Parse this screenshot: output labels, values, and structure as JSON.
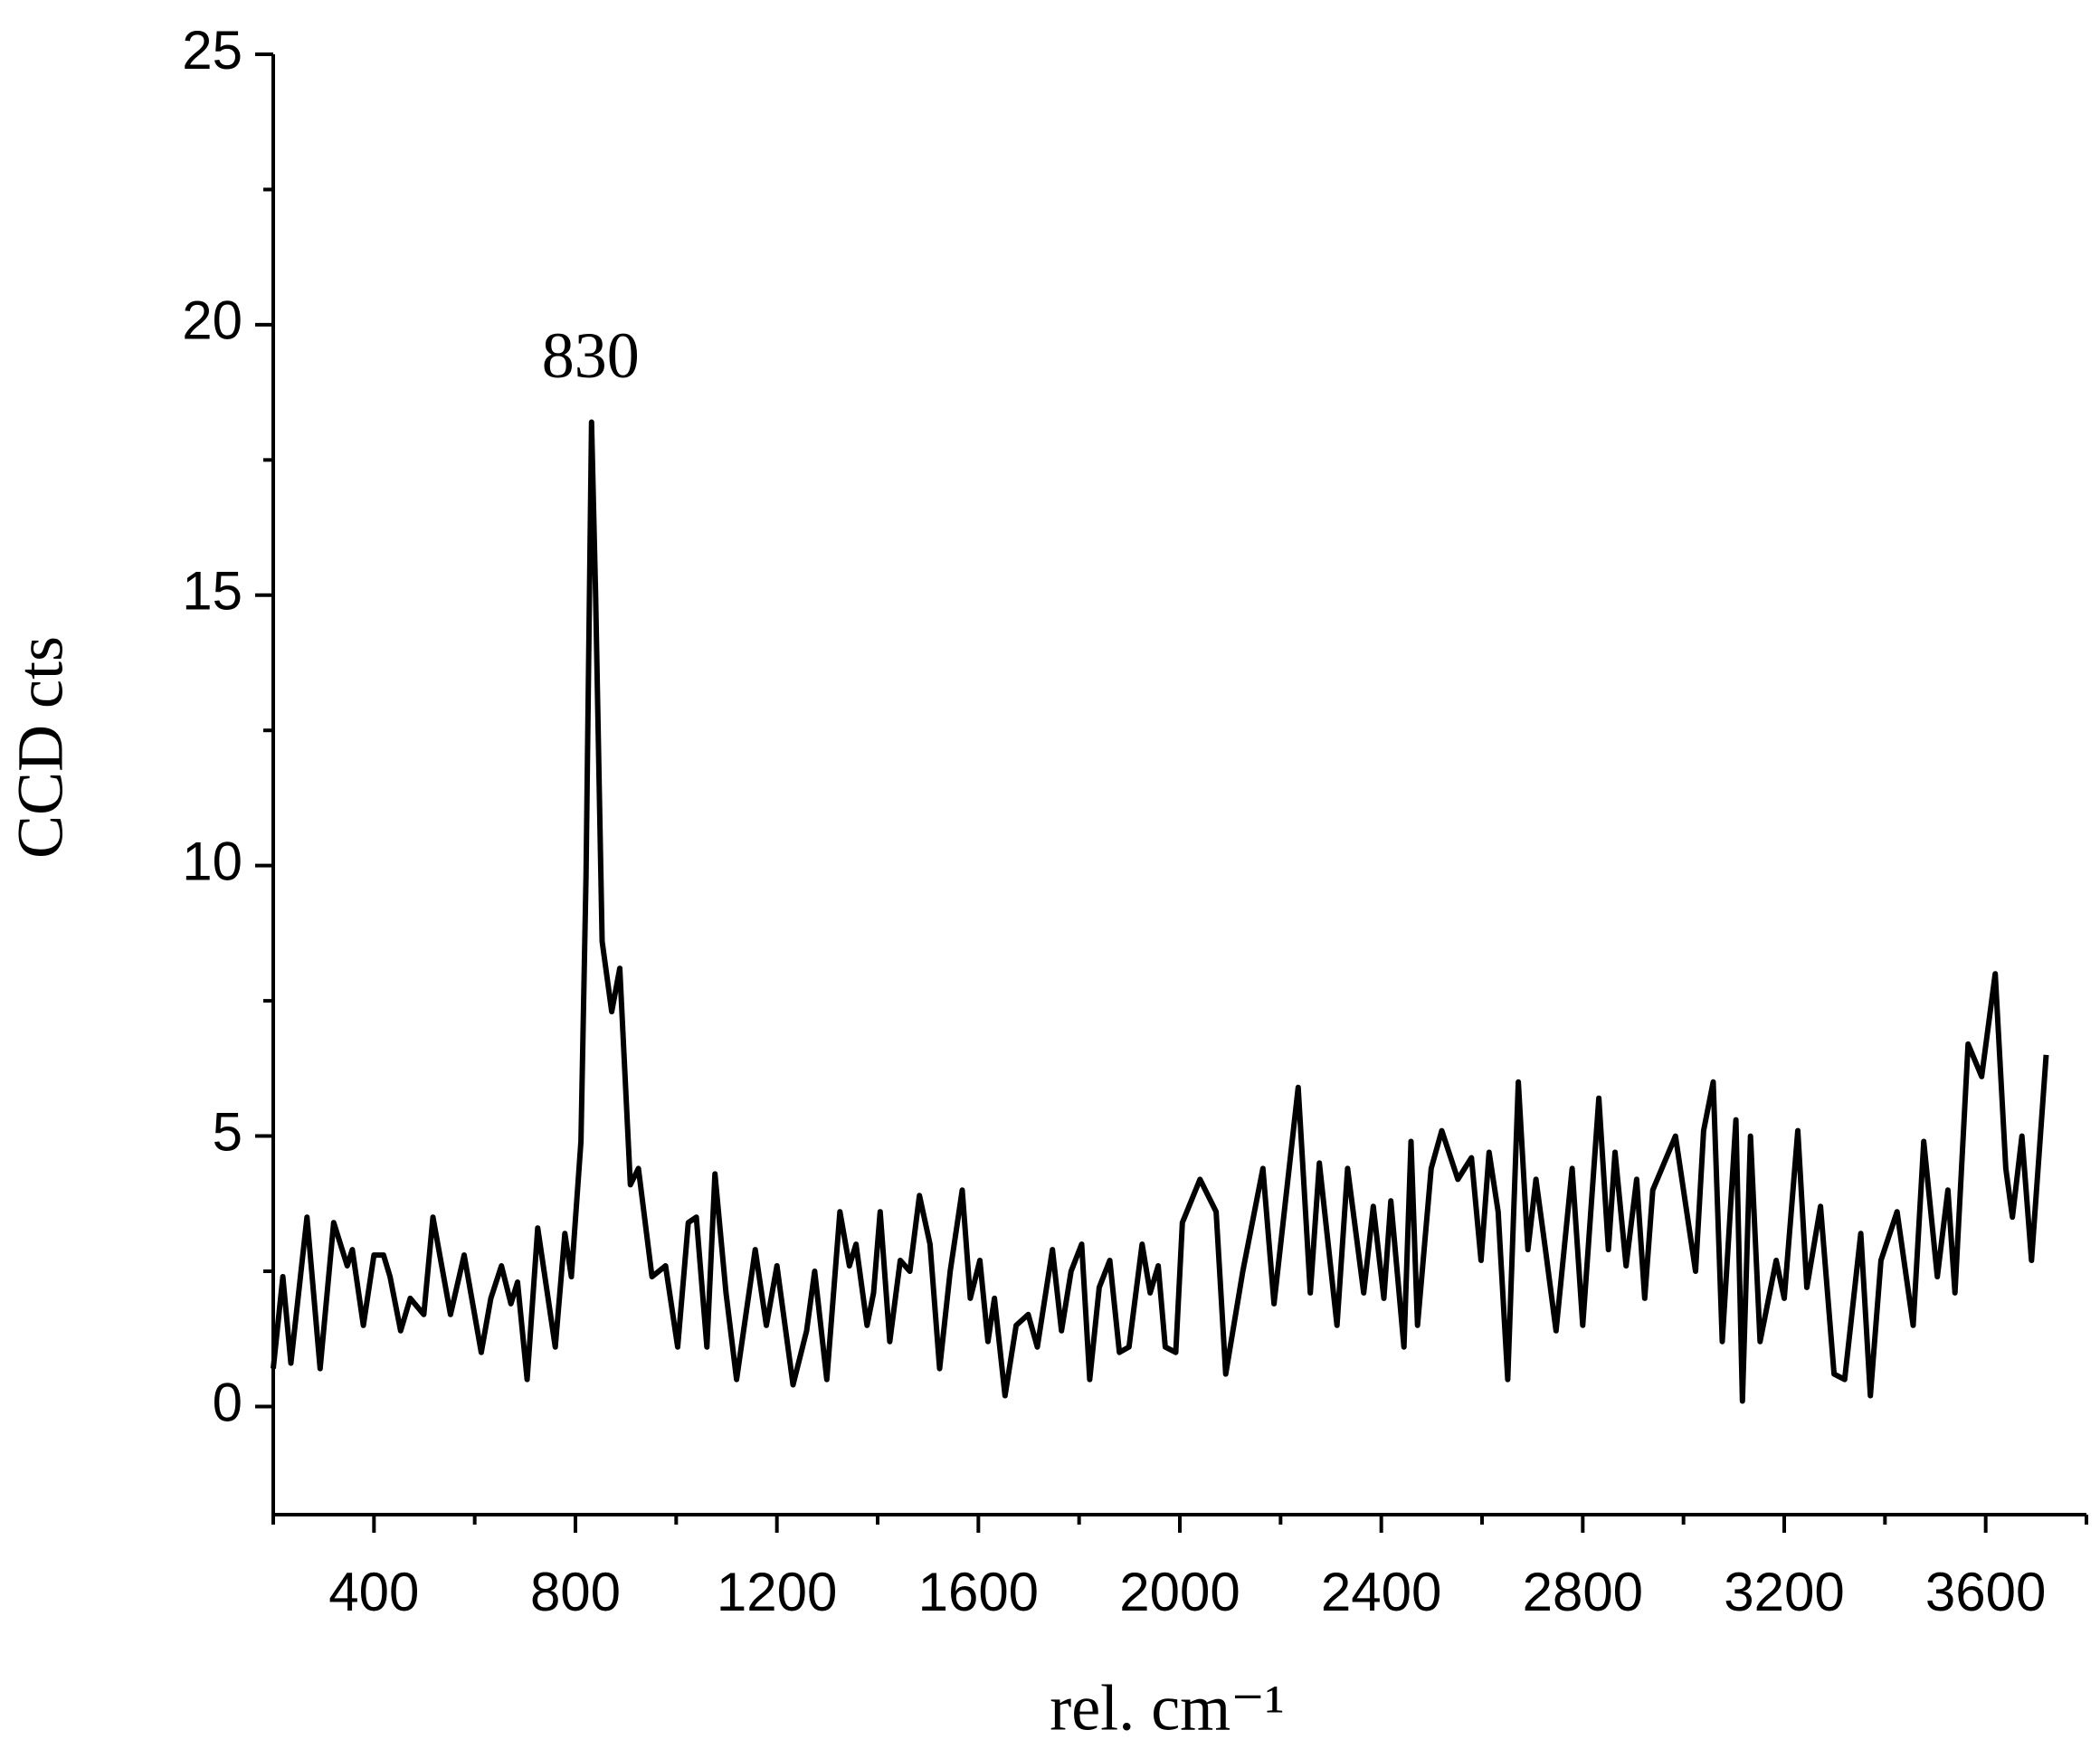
{
  "chart_data": {
    "type": "line",
    "xlabel": "rel. cm⁻¹",
    "ylabel": "CCD cts",
    "annotations": [
      {
        "text": "830",
        "x": 830,
        "y": 19.3
      }
    ],
    "xlim": [
      200,
      3800
    ],
    "ylim": [
      -2,
      25
    ],
    "xticks": [
      400,
      800,
      1200,
      1600,
      2000,
      2400,
      2800,
      3200,
      3600
    ],
    "xminorticks": [
      200,
      600,
      1000,
      1400,
      1800,
      2200,
      2600,
      3000,
      3400,
      3800
    ],
    "yticks": [
      0,
      5,
      10,
      15,
      20,
      25
    ],
    "yminorticks": [
      2.5,
      7.5,
      12.5,
      17.5,
      22.5
    ],
    "grid": false,
    "series": [
      {
        "color": "#000000",
        "x": [
          200,
          219,
          235,
          267,
          293,
          320,
          347,
          357,
          379,
          400,
          419,
          432,
          453,
          472,
          499,
          517,
          552,
          579,
          613,
          632,
          653,
          672,
          685,
          704,
          725,
          760,
          779,
          792,
          811,
          821,
          832,
          840,
          853,
          872,
          888,
          909,
          925,
          952,
          979,
          1003,
          1024,
          1040,
          1061,
          1077,
          1099,
          1120,
          1157,
          1179,
          1200,
          1232,
          1259,
          1275,
          1299,
          1325,
          1344,
          1357,
          1379,
          1392,
          1405,
          1424,
          1445,
          1464,
          1483,
          1504,
          1523,
          1544,
          1568,
          1584,
          1603,
          1619,
          1632,
          1653,
          1675,
          1699,
          1717,
          1747,
          1765,
          1784,
          1805,
          1821,
          1840,
          1861,
          1880,
          1899,
          1925,
          1941,
          1957,
          1971,
          1992,
          2005,
          2040,
          2072,
          2091,
          2125,
          2165,
          2187,
          2235,
          2259,
          2277,
          2312,
          2333,
          2365,
          2384,
          2405,
          2419,
          2445,
          2459,
          2472,
          2499,
          2520,
          2552,
          2579,
          2598,
          2614,
          2632,
          2651,
          2672,
          2691,
          2707,
          2726,
          2747,
          2779,
          2800,
          2832,
          2851,
          2864,
          2886,
          2907,
          2923,
          2939,
          2984,
          3024,
          3040,
          3059,
          3077,
          3104,
          3117,
          3133,
          3152,
          3184,
          3200,
          3227,
          3245,
          3272,
          3299,
          3320,
          3352,
          3371,
          3392,
          3424,
          3456,
          3477,
          3504,
          3525,
          3539,
          3565,
          3592,
          3619,
          3640,
          3653,
          3672,
          3691,
          3720
        ],
        "values": [
          0.7,
          2.4,
          0.8,
          3.5,
          0.7,
          3.4,
          2.6,
          2.9,
          1.5,
          2.8,
          2.8,
          2.4,
          1.4,
          2.0,
          1.7,
          3.5,
          1.7,
          2.8,
          1.0,
          2.0,
          2.6,
          1.9,
          2.3,
          0.5,
          3.3,
          1.1,
          3.2,
          2.4,
          4.9,
          9.8,
          18.2,
          15,
          8.6,
          7.3,
          8.1,
          4.1,
          4.4,
          2.4,
          2.6,
          1.1,
          3.4,
          3.5,
          1.1,
          4.3,
          2.1,
          0.5,
          2.9,
          1.5,
          2.6,
          0.4,
          1.4,
          2.5,
          0.5,
          3.6,
          2.6,
          3.0,
          1.5,
          2.1,
          3.6,
          1.2,
          2.7,
          2.5,
          3.9,
          3.0,
          0.7,
          2.5,
          4.0,
          2.0,
          2.7,
          1.2,
          2.0,
          0.2,
          1.5,
          1.7,
          1.1,
          2.9,
          1.4,
          2.5,
          3.0,
          0.5,
          2.2,
          2.7,
          1.0,
          1.1,
          3.0,
          2.1,
          2.6,
          1.1,
          1.0,
          3.4,
          4.2,
          3.6,
          0.6,
          2.5,
          4.4,
          1.9,
          5.9,
          2.1,
          4.5,
          1.5,
          4.4,
          2.1,
          3.7,
          2.0,
          3.8,
          1.1,
          4.9,
          1.5,
          4.4,
          5.1,
          4.2,
          4.6,
          2.7,
          4.7,
          3.6,
          0.5,
          6.0,
          2.9,
          4.2,
          2.9,
          1.4,
          4.4,
          1.5,
          5.7,
          2.9,
          4.7,
          2.6,
          4.2,
          2.0,
          4.0,
          5.0,
          2.5,
          5.1,
          6.0,
          1.2,
          5.3,
          0.1,
          5.0,
          1.2,
          2.7,
          2.0,
          5.1,
          2.2,
          3.7,
          0.6,
          0.5,
          3.2,
          0.2,
          2.7,
          3.6,
          1.5,
          4.9,
          2.4,
          4.0,
          2.1,
          6.7,
          6.1,
          8.0,
          4.4,
          3.5,
          5.0,
          2.7,
          6.5
        ]
      }
    ]
  }
}
